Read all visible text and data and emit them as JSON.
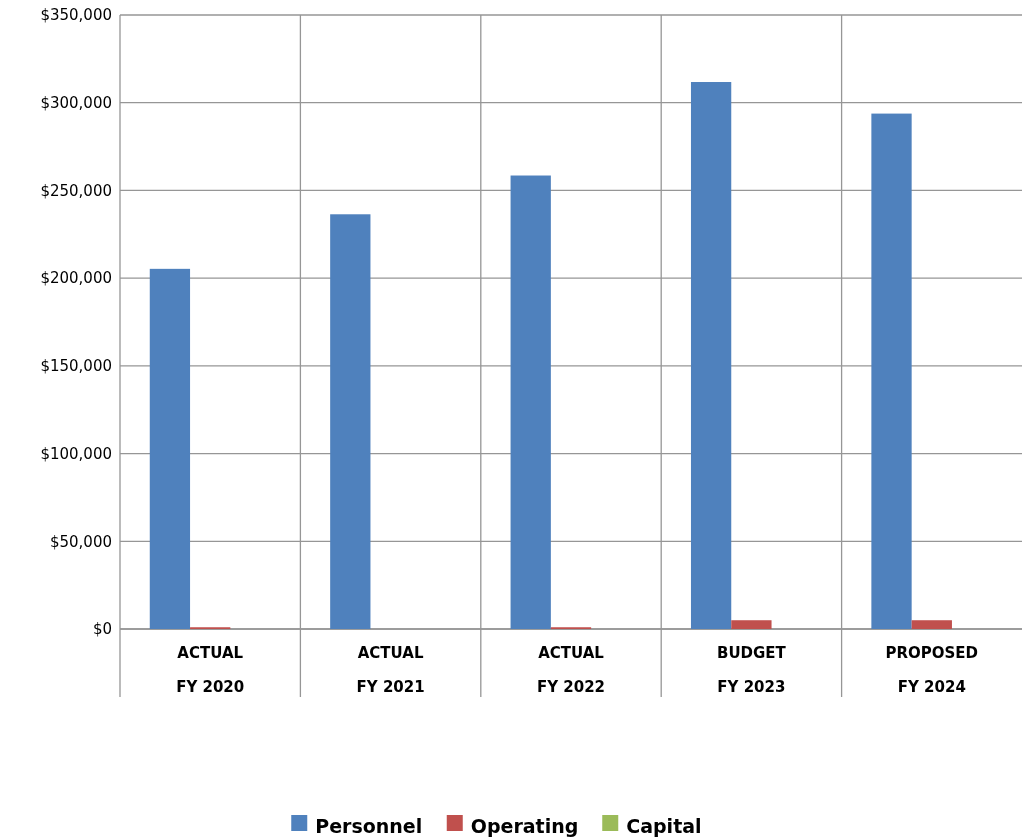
{
  "chart_data": {
    "type": "bar",
    "categories": [
      "ACTUAL\nFY 2020",
      "ACTUAL\nFY 2021",
      "ACTUAL\nFY 2022",
      "BUDGET\nFY 2023",
      "PROPOSED\nFY 2024"
    ],
    "series": [
      {
        "name": "Personnel",
        "color": "#4f81bd",
        "values": [
          205300,
          236400,
          258500,
          311800,
          293800
        ]
      },
      {
        "name": "Operating",
        "color": "#c0504d",
        "values": [
          1000,
          0,
          1000,
          5000,
          5000
        ]
      },
      {
        "name": "Capital",
        "color": "#9bbb59",
        "values": [
          0,
          0,
          0,
          0,
          0
        ]
      }
    ],
    "ylim": [
      0,
      350000
    ],
    "yticks": [
      {
        "value": 0,
        "label": "$0"
      },
      {
        "value": 50000,
        "label": "$50,000"
      },
      {
        "value": 100000,
        "label": "$100,000"
      },
      {
        "value": 150000,
        "label": "$150,000"
      },
      {
        "value": 200000,
        "label": "$200,000"
      },
      {
        "value": 250000,
        "label": "$250,000"
      },
      {
        "value": 300000,
        "label": "$300,000"
      },
      {
        "value": 350000,
        "label": "$350,000"
      }
    ],
    "grid": true,
    "legend": "bottom"
  }
}
